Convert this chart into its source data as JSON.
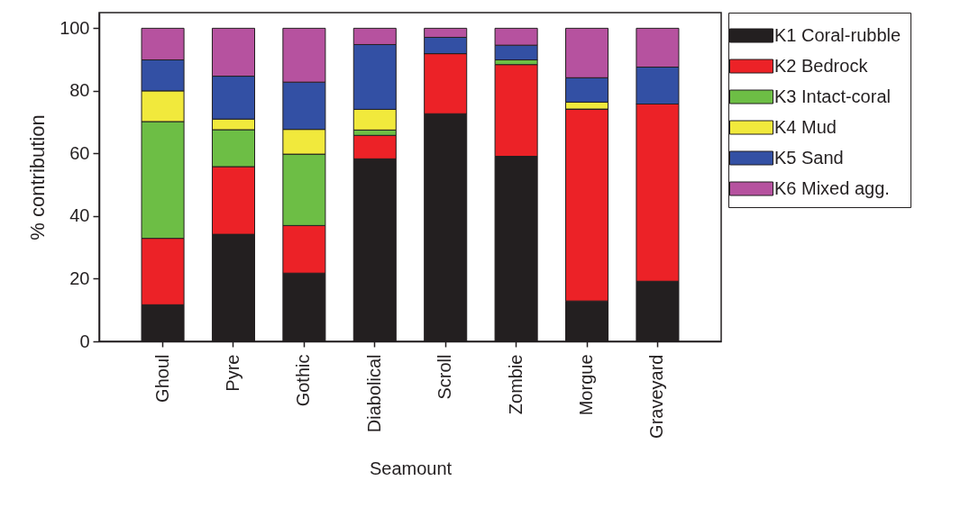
{
  "chart_data": {
    "type": "bar",
    "stacked": true,
    "xlabel": "Seamount",
    "ylabel": "% contribution",
    "categories": [
      "Ghoul",
      "Pyre",
      "Gothic",
      "Diabolical",
      "Scroll",
      "Zombie",
      "Morgue",
      "Graveyard"
    ],
    "series": [
      {
        "name": "K1 Coral-rubble",
        "color": "#231f20",
        "values": [
          11.7,
          34.2,
          21.8,
          58.3,
          72.7,
          59.1,
          12.9,
          19.2
        ]
      },
      {
        "name": "K2 Bedrock",
        "color": "#ec2227",
        "values": [
          21.2,
          21.6,
          15.2,
          7.5,
          19.2,
          29.3,
          61.3,
          56.6
        ]
      },
      {
        "name": "K3 Intact-coral",
        "color": "#6dbe45",
        "values": [
          37.3,
          11.8,
          22.8,
          1.7,
          0,
          1.5,
          0,
          0
        ]
      },
      {
        "name": "K4 Mud",
        "color": "#f1e93c",
        "values": [
          9.8,
          3.4,
          7.9,
          6.6,
          0,
          0,
          2.2,
          0
        ]
      },
      {
        "name": "K5 Sand",
        "color": "#3350a4",
        "values": [
          9.9,
          13.7,
          15.1,
          20.7,
          5.2,
          4.7,
          7.8,
          11.8
        ]
      },
      {
        "name": "K6 Mixed agg.",
        "color": "#b6529f",
        "values": [
          10.1,
          15.3,
          17.2,
          5.2,
          2.9,
          5.4,
          15.8,
          12.4
        ]
      }
    ],
    "ylim": [
      0,
      105
    ],
    "yticks": [
      0,
      20,
      40,
      60,
      80,
      100
    ],
    "grid": false,
    "legend": "right"
  }
}
